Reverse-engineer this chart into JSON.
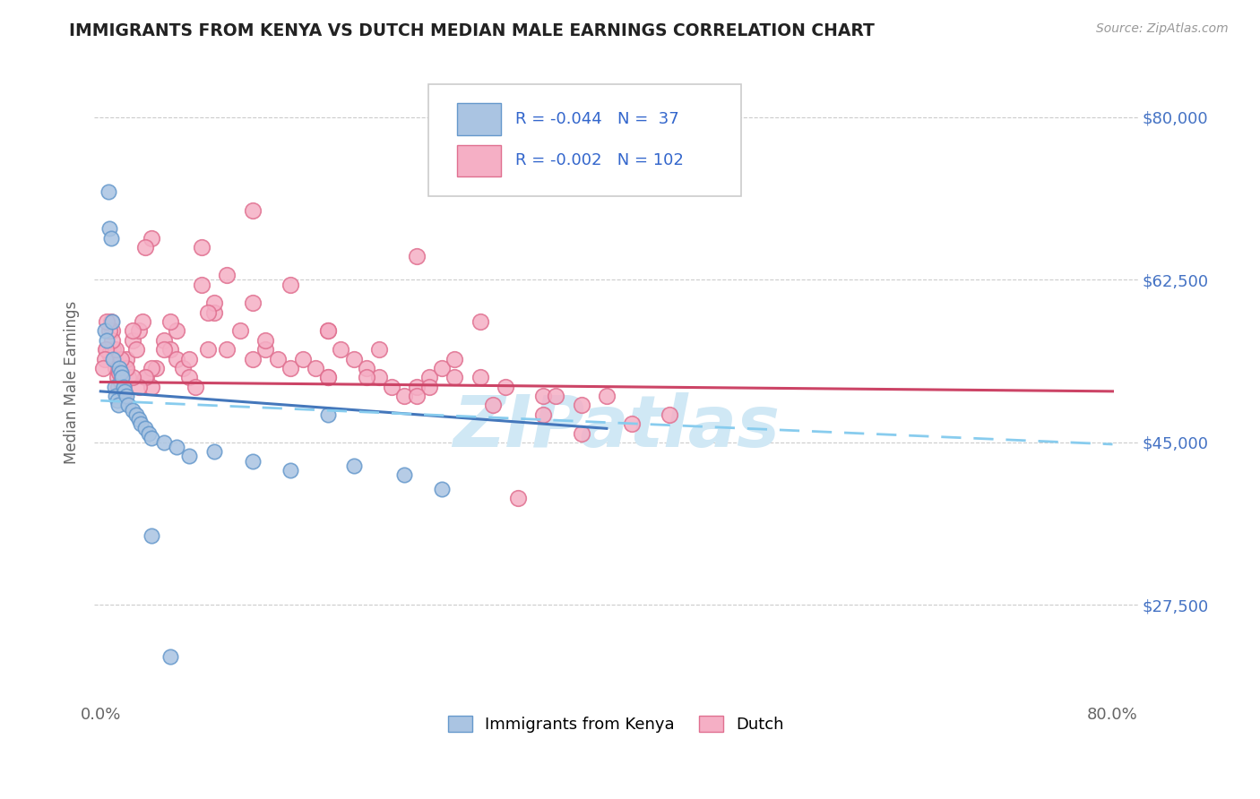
{
  "title": "IMMIGRANTS FROM KENYA VS DUTCH MEDIAN MALE EARNINGS CORRELATION CHART",
  "source_text": "Source: ZipAtlas.com",
  "ylabel": "Median Male Earnings",
  "y_ticks": [
    27500,
    45000,
    62500,
    80000
  ],
  "y_tick_labels": [
    "$27,500",
    "$45,000",
    "$62,500",
    "$80,000"
  ],
  "xlim": [
    -0.005,
    0.82
  ],
  "ylim": [
    17000,
    86000
  ],
  "kenya_color": "#aac4e2",
  "dutch_color": "#f5afc5",
  "kenya_edge": "#6699cc",
  "dutch_edge": "#e07090",
  "trendline_kenya_color": "#4477bb",
  "trendline_dutch_solid_color": "#cc4466",
  "trendline_dutch_dashed_color": "#88ccee",
  "watermark_color": "#d0e8f5",
  "background_color": "#ffffff",
  "kenya_scatter_x": [
    0.003,
    0.005,
    0.006,
    0.007,
    0.008,
    0.009,
    0.01,
    0.011,
    0.012,
    0.013,
    0.014,
    0.015,
    0.016,
    0.017,
    0.018,
    0.019,
    0.02,
    0.022,
    0.025,
    0.028,
    0.03,
    0.032,
    0.035,
    0.038,
    0.04,
    0.05,
    0.06,
    0.07,
    0.09,
    0.12,
    0.15,
    0.18,
    0.2,
    0.24,
    0.27,
    0.04,
    0.055
  ],
  "kenya_scatter_y": [
    57000,
    56000,
    72000,
    68000,
    67000,
    58000,
    54000,
    51000,
    50000,
    49500,
    49000,
    53000,
    52500,
    52000,
    51000,
    50500,
    50000,
    49000,
    48500,
    48000,
    47500,
    47000,
    46500,
    46000,
    45500,
    45000,
    44500,
    43500,
    44000,
    43000,
    42000,
    48000,
    42500,
    41500,
    40000,
    35000,
    22000
  ],
  "dutch_scatter_x": [
    0.005,
    0.007,
    0.008,
    0.009,
    0.01,
    0.011,
    0.012,
    0.013,
    0.014,
    0.015,
    0.016,
    0.017,
    0.018,
    0.019,
    0.02,
    0.022,
    0.025,
    0.028,
    0.03,
    0.033,
    0.036,
    0.04,
    0.044,
    0.05,
    0.055,
    0.06,
    0.065,
    0.07,
    0.075,
    0.08,
    0.085,
    0.09,
    0.1,
    0.11,
    0.12,
    0.13,
    0.14,
    0.15,
    0.16,
    0.17,
    0.18,
    0.19,
    0.2,
    0.21,
    0.22,
    0.23,
    0.24,
    0.25,
    0.26,
    0.27,
    0.28,
    0.3,
    0.32,
    0.35,
    0.38,
    0.4,
    0.12,
    0.08,
    0.25,
    0.15,
    0.3,
    0.18,
    0.09,
    0.06,
    0.04,
    0.035,
    0.22,
    0.35,
    0.28,
    0.45,
    0.38,
    0.42,
    0.36,
    0.31,
    0.26,
    0.21,
    0.18,
    0.13,
    0.1,
    0.07,
    0.05,
    0.04,
    0.035,
    0.03,
    0.025,
    0.02,
    0.016,
    0.012,
    0.009,
    0.007,
    0.005,
    0.004,
    0.003,
    0.002,
    0.025,
    0.055,
    0.085,
    0.12,
    0.18,
    0.25,
    0.33
  ],
  "dutch_scatter_y": [
    55000,
    54500,
    58000,
    57000,
    55000,
    54000,
    53000,
    52000,
    51000,
    52500,
    51500,
    50500,
    50000,
    53000,
    54000,
    52000,
    56000,
    55000,
    57000,
    58000,
    52000,
    51000,
    53000,
    56000,
    55000,
    54000,
    53000,
    52000,
    51000,
    62000,
    55000,
    59000,
    63000,
    57000,
    60000,
    55000,
    54000,
    53000,
    54000,
    53000,
    52000,
    55000,
    54000,
    53000,
    52000,
    51000,
    50000,
    51000,
    52000,
    53000,
    54000,
    52000,
    51000,
    50000,
    49000,
    50000,
    70000,
    66000,
    65000,
    62000,
    58000,
    57000,
    60000,
    57000,
    67000,
    66000,
    55000,
    48000,
    52000,
    48000,
    46000,
    47000,
    50000,
    49000,
    51000,
    52000,
    57000,
    56000,
    55000,
    54000,
    55000,
    53000,
    52000,
    51000,
    52000,
    53000,
    54000,
    55000,
    56000,
    57000,
    58000,
    55000,
    54000,
    53000,
    57000,
    58000,
    59000,
    54000,
    52000,
    50000,
    39000
  ]
}
